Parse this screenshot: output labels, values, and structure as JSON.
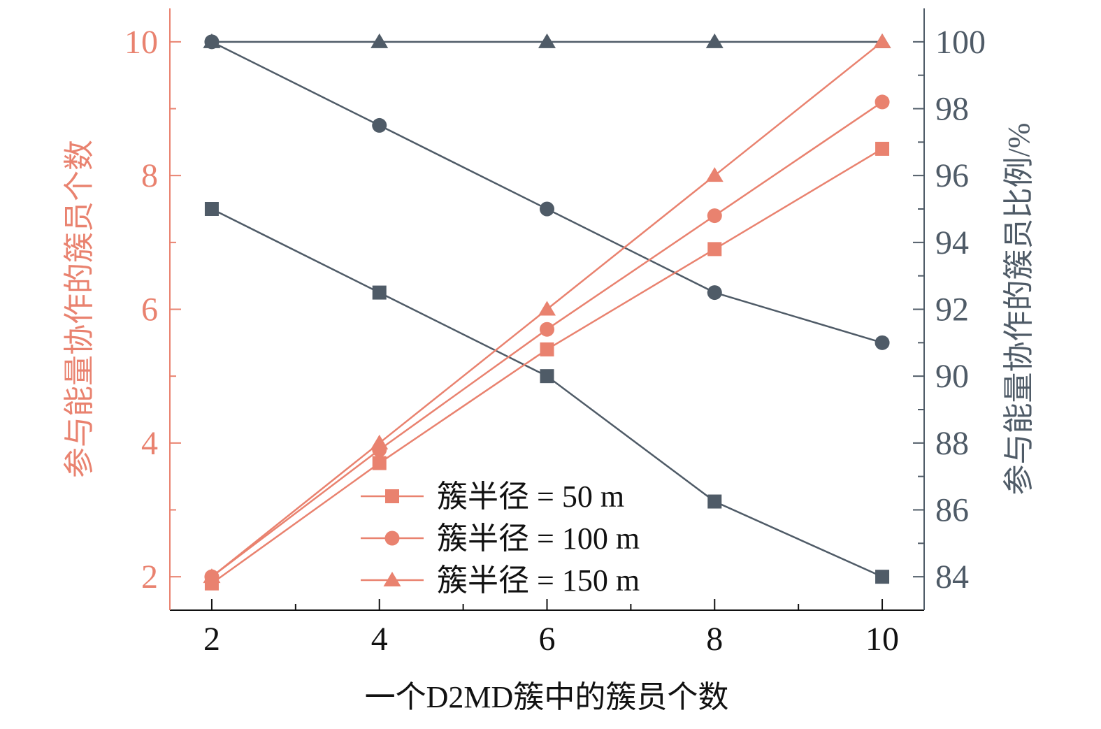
{
  "chart_data": {
    "type": "line",
    "xlabel": "一个D2MD簇中的簇员个数",
    "ylabel_left": "参与能量协作的簇员个数",
    "ylabel_right": "参与能量协作的簇员比例/%",
    "x": [
      2,
      4,
      6,
      8,
      10
    ],
    "xlim": [
      1.5,
      10.5
    ],
    "xticks": [
      2,
      4,
      6,
      8,
      10
    ],
    "ylim_left": [
      1.5,
      10.5
    ],
    "yticks_left": [
      2,
      4,
      6,
      8,
      10
    ],
    "ylim_right": [
      83,
      101
    ],
    "yticks_right": [
      84,
      86,
      88,
      90,
      92,
      94,
      96,
      98,
      100
    ],
    "grid": false,
    "legend_position": "lower-center",
    "colors": {
      "left_series": "#E9826F",
      "right_series": "#4F5B67",
      "x_axis": "#111111"
    },
    "series": [
      {
        "name": "簇半径 = 50 m",
        "axis": "left",
        "marker": "square",
        "values": [
          1.9,
          3.7,
          5.4,
          6.9,
          8.4
        ]
      },
      {
        "name": "簇半径 = 100 m",
        "axis": "left",
        "marker": "circle",
        "values": [
          2.0,
          3.9,
          5.7,
          7.4,
          9.1
        ]
      },
      {
        "name": "簇半径 = 150 m",
        "axis": "left",
        "marker": "triangle",
        "values": [
          2,
          4,
          6,
          8,
          10
        ]
      },
      {
        "axis": "right",
        "marker": "square",
        "values": [
          95,
          92.5,
          90,
          86.25,
          84
        ]
      },
      {
        "axis": "right",
        "marker": "circle",
        "values": [
          100,
          97.5,
          95,
          92.5,
          91
        ]
      },
      {
        "axis": "right",
        "marker": "triangle",
        "values": [
          100,
          100,
          100,
          100,
          100
        ]
      }
    ]
  }
}
